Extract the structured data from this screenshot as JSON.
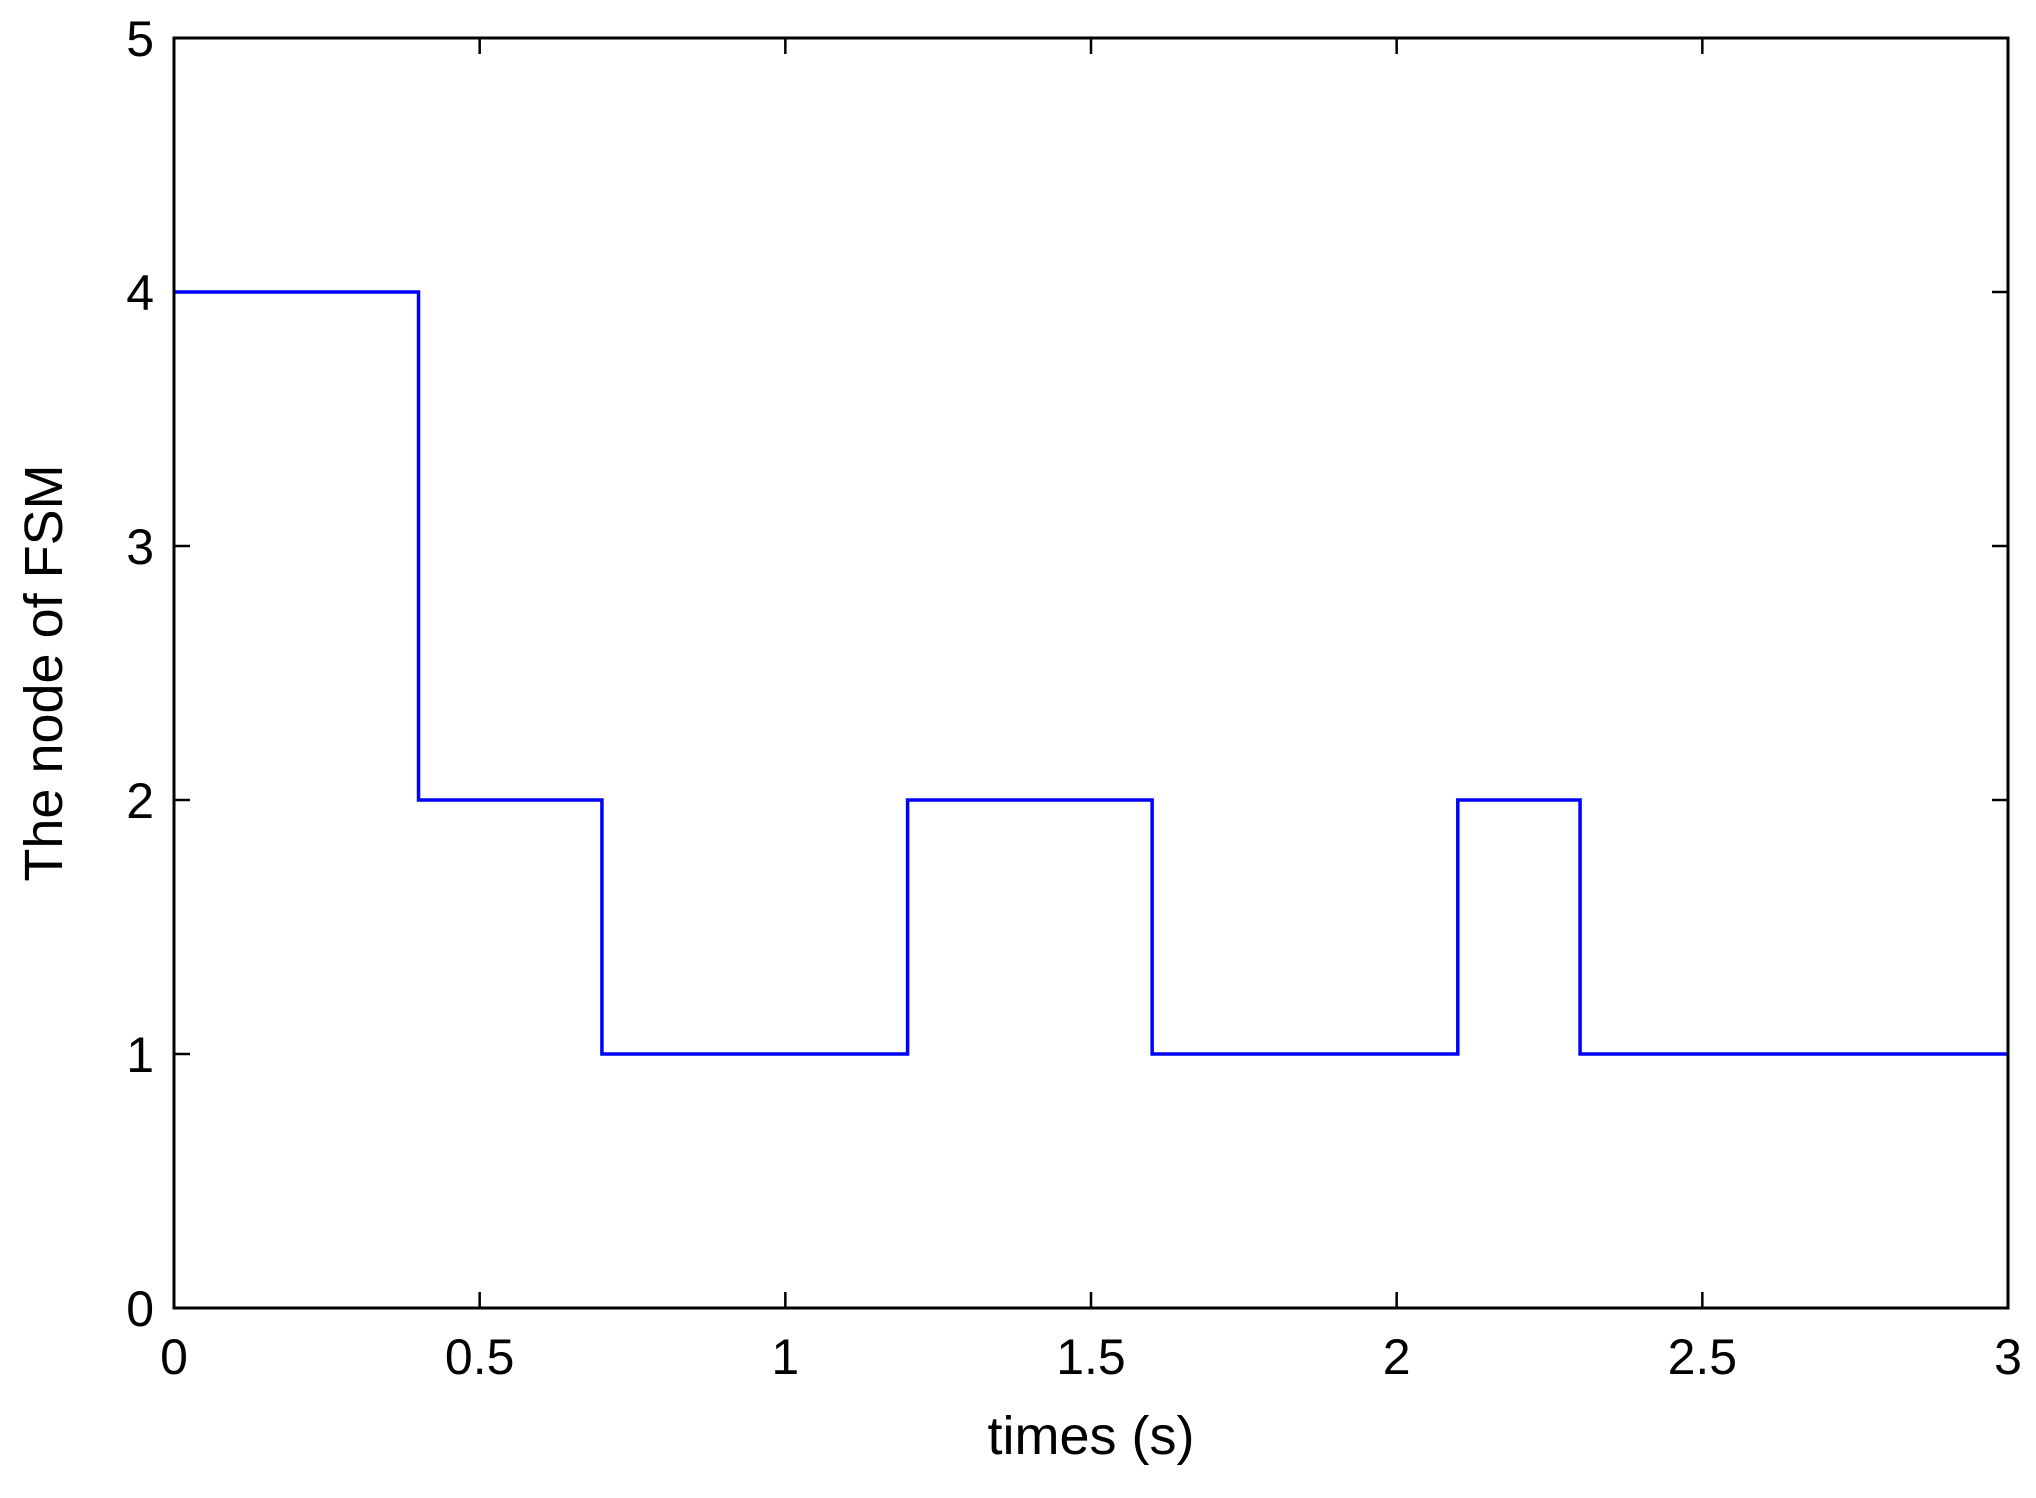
{
  "chart_data": {
    "type": "line",
    "line_style": "step",
    "title": "",
    "xlabel": "times (s)",
    "ylabel": "The node of FSM",
    "xlim": [
      0,
      3
    ],
    "ylim": [
      0,
      5
    ],
    "grid": false,
    "x_ticks": [
      "0",
      "0.5",
      "1",
      "1.5",
      "2",
      "2.5",
      "3"
    ],
    "y_ticks": [
      "0",
      "1",
      "2",
      "3",
      "4",
      "5"
    ],
    "series": [
      {
        "color": "#0000ff",
        "x": [
          0,
          0.4,
          0.4,
          0.7,
          0.7,
          1.2,
          1.2,
          1.6,
          1.6,
          2.1,
          2.1,
          2.3,
          2.3,
          3.0
        ],
        "y": [
          4,
          4,
          2,
          2,
          1,
          1,
          2,
          2,
          1,
          1,
          2,
          2,
          1,
          1
        ]
      }
    ]
  }
}
